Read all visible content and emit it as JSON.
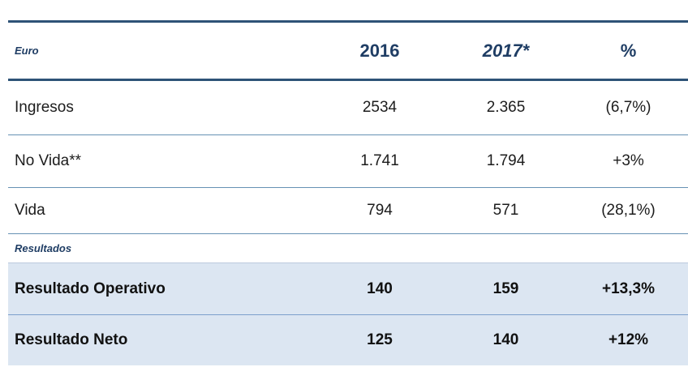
{
  "table": {
    "unit_label": "Euro",
    "columns": {
      "y2016": "2016",
      "y2017": "2017*",
      "pct": "%"
    },
    "rows": [
      {
        "label": "Ingresos",
        "v2016": "2534",
        "v2017": "2.365",
        "pct": "(6,7%)"
      },
      {
        "label": "No Vida**",
        "v2016": "1.741",
        "v2017": "1.794",
        "pct": "+3%"
      },
      {
        "label": "Vida",
        "v2016": "794",
        "v2017": "571",
        "pct": "(28,1%)"
      }
    ],
    "section_label": "Resultados",
    "highlight_rows": [
      {
        "label": "Resultado Operativo",
        "v2016": "140",
        "v2017": "159",
        "pct": "+13,3%"
      },
      {
        "label": "Resultado Neto",
        "v2016": "125",
        "v2017": "140",
        "pct": "+12%"
      }
    ],
    "colors": {
      "header_text": "#1F3D64",
      "thick_rule": "#2E5377",
      "thin_rule": "#6691B4",
      "highlight_rule": "#7C9FCB",
      "highlight_bg": "#DCE6F2",
      "body_text": "#1C1C1C"
    }
  }
}
